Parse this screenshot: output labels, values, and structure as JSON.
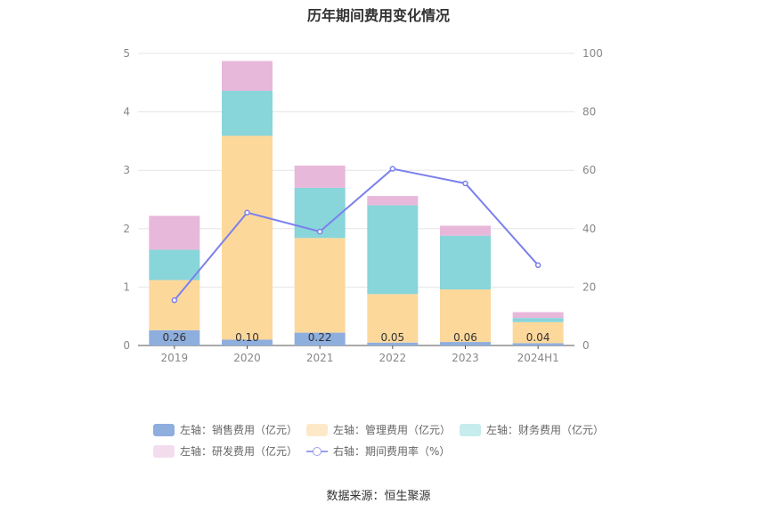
{
  "chart_data": {
    "type": "bar",
    "title": "历年期间费用变化情况",
    "categories": [
      "2019",
      "2020",
      "2021",
      "2022",
      "2023",
      "2024H1"
    ],
    "left_axis": {
      "ylim": [
        0,
        5
      ],
      "ticks": [
        "0",
        "1",
        "2",
        "3",
        "4",
        "5"
      ]
    },
    "right_axis": {
      "ylim": [
        0,
        100
      ],
      "ticks": [
        "0",
        "20",
        "40",
        "60",
        "80",
        "100"
      ]
    },
    "series": [
      {
        "name": "左轴：销售费用（亿元）",
        "type": "bar",
        "axis": "left",
        "color": "#8eaede",
        "values": [
          0.26,
          0.1,
          0.22,
          0.05,
          0.06,
          0.04
        ],
        "labels": [
          "0.26",
          "0.10",
          "0.22",
          "0.05",
          "0.06",
          "0.04"
        ]
      },
      {
        "name": "左轴：管理费用（亿元）",
        "type": "bar",
        "axis": "left",
        "color": "#fdd89b",
        "values": [
          0.86,
          3.49,
          1.62,
          0.83,
          0.9,
          0.36
        ]
      },
      {
        "name": "左轴：财务费用（亿元）",
        "type": "bar",
        "axis": "left",
        "color": "#88d5da",
        "values": [
          0.52,
          0.77,
          0.86,
          1.52,
          0.92,
          0.07
        ]
      },
      {
        "name": "左轴：研发费用（亿元）",
        "type": "bar",
        "axis": "left",
        "color": "#e8b8da",
        "values": [
          0.58,
          0.51,
          0.38,
          0.16,
          0.17,
          0.1
        ]
      },
      {
        "name": "右轴：期间费用率（%）",
        "type": "line",
        "axis": "right",
        "color": "#7b80ec",
        "values": [
          15.5,
          45.5,
          39.0,
          60.5,
          55.5,
          27.5
        ]
      }
    ],
    "legend_position": "bottom",
    "legend_colors": [
      "#8eaede",
      "#fde9c8",
      "#c6ecee",
      "#f4dcef"
    ],
    "grid": true
  },
  "source": "数据来源：恒生聚源"
}
